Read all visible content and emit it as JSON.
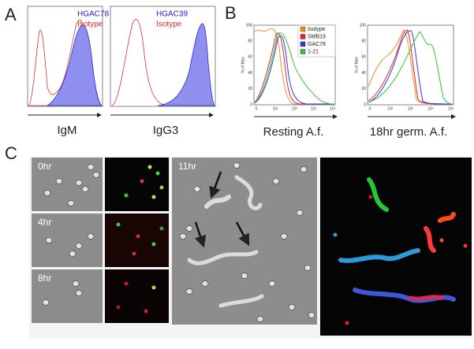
{
  "panel_labels": [
    "A",
    "B",
    "C"
  ],
  "panel_a": {
    "plots": [
      {
        "sample": "HGAC78",
        "control": "Isotype",
        "x_label": "IgM"
      },
      {
        "sample": "HGAC39",
        "control": "Isotype",
        "x_label": "IgG3"
      }
    ]
  },
  "panel_b": {
    "y_label": "% of Max",
    "yticks": [
      "0",
      "20",
      "40",
      "60",
      "80",
      "100"
    ],
    "xticks": [
      "0",
      "10²",
      "10³",
      "10⁴",
      "10⁵"
    ],
    "legend": [
      {
        "name": "Isotype",
        "color": "#f08a24"
      },
      {
        "name": "SMB19",
        "color": "#e02626"
      },
      {
        "name": "GAC78",
        "color": "#3434d4"
      },
      {
        "name": "1-21",
        "color": "#2fc82f"
      }
    ],
    "plots": [
      {
        "x_label": "Resting A.f."
      },
      {
        "x_label": "18hr germ. A.f."
      }
    ]
  },
  "panel_c": {
    "time_labels": [
      "0hr",
      "4hr",
      "8hr",
      "11hr"
    ]
  }
}
